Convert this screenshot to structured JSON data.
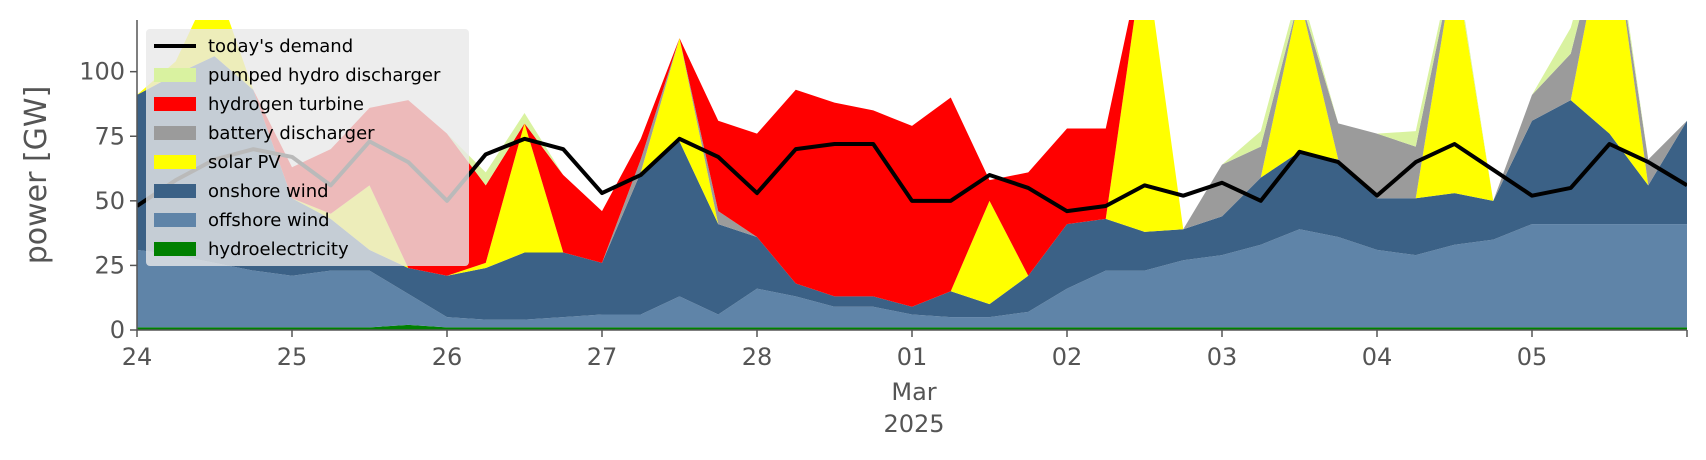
{
  "chart_data": {
    "type": "area",
    "title": "",
    "ylabel": "power [GW]",
    "ylim": [
      0,
      120
    ],
    "yticks": [
      0,
      25,
      50,
      75,
      100
    ],
    "xlim": [
      "2025-02-24T00:00",
      "2025-03-06T00:00"
    ],
    "x_ticks": [
      {
        "at": "2025-02-24T00:00",
        "label": "24"
      },
      {
        "at": "2025-02-25T00:00",
        "label": "25"
      },
      {
        "at": "2025-02-26T00:00",
        "label": "26"
      },
      {
        "at": "2025-02-27T00:00",
        "label": "27"
      },
      {
        "at": "2025-02-28T00:00",
        "label": "28"
      },
      {
        "at": "2025-03-01T00:00",
        "label": "01"
      },
      {
        "at": "2025-03-02T00:00",
        "label": "02"
      },
      {
        "at": "2025-03-03T00:00",
        "label": "03"
      },
      {
        "at": "2025-03-04T00:00",
        "label": "04"
      },
      {
        "at": "2025-03-05T00:00",
        "label": "05"
      }
    ],
    "x_sublabels": [
      "Mar",
      "2025"
    ],
    "grid": false,
    "legend_position": "top-left",
    "x": [
      "2025-02-24T00:00",
      "2025-02-24T06:00",
      "2025-02-24T12:00",
      "2025-02-24T18:00",
      "2025-02-25T00:00",
      "2025-02-25T06:00",
      "2025-02-25T12:00",
      "2025-02-25T18:00",
      "2025-02-26T00:00",
      "2025-02-26T06:00",
      "2025-02-26T12:00",
      "2025-02-26T18:00",
      "2025-02-27T00:00",
      "2025-02-27T06:00",
      "2025-02-27T12:00",
      "2025-02-27T18:00",
      "2025-02-28T00:00",
      "2025-02-28T06:00",
      "2025-02-28T12:00",
      "2025-02-28T18:00",
      "2025-03-01T00:00",
      "2025-03-01T06:00",
      "2025-03-01T12:00",
      "2025-03-01T18:00",
      "2025-03-02T00:00",
      "2025-03-02T06:00",
      "2025-03-02T12:00",
      "2025-03-02T18:00",
      "2025-03-03T00:00",
      "2025-03-03T06:00",
      "2025-03-03T12:00",
      "2025-03-03T18:00",
      "2025-03-04T00:00",
      "2025-03-04T06:00",
      "2025-03-04T12:00",
      "2025-03-04T18:00",
      "2025-03-05T00:00",
      "2025-03-05T06:00",
      "2025-03-05T12:00",
      "2025-03-05T18:00",
      "2025-03-06T00:00"
    ],
    "series": [
      {
        "name": "hydroelectricity",
        "color": "#008000",
        "values": [
          1,
          1,
          1,
          1,
          1,
          1,
          1,
          2,
          1,
          1,
          1,
          1,
          1,
          1,
          1,
          1,
          1,
          1,
          1,
          1,
          1,
          1,
          1,
          1,
          1,
          1,
          1,
          1,
          1,
          1,
          1,
          1,
          1,
          1,
          1,
          1,
          1,
          1,
          1,
          1,
          1
        ]
      },
      {
        "name": "offshore wind",
        "color": "#5f84a8",
        "values": [
          30,
          28,
          25,
          22,
          20,
          22,
          22,
          12,
          4,
          3,
          3,
          4,
          5,
          5,
          12,
          5,
          15,
          12,
          8,
          8,
          5,
          4,
          4,
          6,
          15,
          22,
          22,
          26,
          28,
          32,
          38,
          35,
          30,
          28,
          32,
          34,
          40,
          40,
          40,
          40,
          40
        ]
      },
      {
        "name": "onshore wind",
        "color": "#3b6186",
        "values": [
          60,
          70,
          80,
          70,
          30,
          20,
          8,
          10,
          16,
          20,
          26,
          25,
          20,
          55,
          60,
          35,
          20,
          5,
          4,
          4,
          3,
          10,
          5,
          14,
          25,
          20,
          15,
          12,
          15,
          26,
          30,
          30,
          20,
          22,
          20,
          15,
          40,
          48,
          35,
          15,
          40
        ]
      },
      {
        "name": "solar PV",
        "color": "#ffff00",
        "values": [
          0,
          5,
          30,
          0,
          0,
          2,
          25,
          0,
          0,
          2,
          50,
          0,
          0,
          0,
          40,
          0,
          0,
          0,
          0,
          0,
          0,
          0,
          40,
          0,
          0,
          0,
          110,
          0,
          0,
          0,
          60,
          0,
          0,
          0,
          90,
          0,
          0,
          0,
          90,
          0,
          0
        ]
      },
      {
        "name": "battery discharger",
        "color": "#9b9b9b",
        "values": [
          0,
          0,
          0,
          0,
          0,
          0,
          0,
          0,
          0,
          0,
          0,
          0,
          0,
          5,
          0,
          5,
          0,
          0,
          0,
          0,
          0,
          0,
          0,
          0,
          0,
          0,
          0,
          0,
          20,
          12,
          0,
          14,
          25,
          20,
          0,
          0,
          10,
          18,
          0,
          10,
          0
        ]
      },
      {
        "name": "hydrogen turbine",
        "color": "#ff0000",
        "values": [
          0,
          0,
          0,
          0,
          12,
          25,
          30,
          65,
          55,
          30,
          0,
          30,
          20,
          8,
          0,
          35,
          40,
          75,
          75,
          72,
          70,
          75,
          8,
          40,
          37,
          35,
          0,
          0,
          0,
          0,
          0,
          0,
          0,
          0,
          0,
          0,
          0,
          0,
          0,
          0,
          0
        ]
      },
      {
        "name": "pumped hydro discharger",
        "color": "#d9f2a0",
        "values": [
          0,
          0,
          0,
          0,
          0,
          0,
          0,
          0,
          0,
          5,
          4,
          0,
          0,
          0,
          0,
          0,
          0,
          0,
          0,
          0,
          0,
          0,
          0,
          0,
          0,
          0,
          0,
          0,
          0,
          6,
          4,
          0,
          0,
          6,
          3,
          0,
          0,
          10,
          5,
          0,
          0
        ]
      }
    ],
    "demand": {
      "name": "today's demand",
      "color": "#000000",
      "values": [
        48,
        58,
        66,
        70,
        67,
        56,
        73,
        65,
        50,
        68,
        74,
        70,
        53,
        60,
        74,
        67,
        53,
        70,
        72,
        72,
        50,
        50,
        60,
        55,
        46,
        48,
        56,
        52,
        57,
        50,
        69,
        65,
        52,
        65,
        72,
        62,
        52,
        55,
        72,
        65,
        56
      ]
    },
    "legend": [
      "today's demand",
      "pumped hydro discharger",
      "hydrogen turbine",
      "battery discharger",
      "solar PV",
      "onshore wind",
      "offshore wind",
      "hydroelectricity"
    ]
  }
}
